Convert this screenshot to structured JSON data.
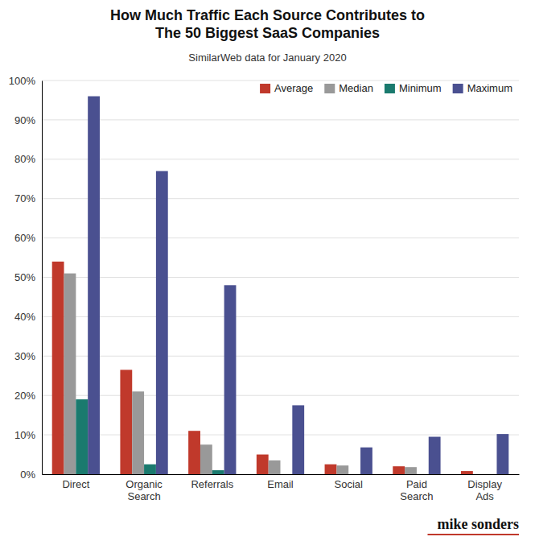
{
  "chart_data": {
    "type": "bar",
    "title": "How Much Traffic Each Source Contributes to\nThe 50 Biggest SaaS Companies",
    "subtitle": "SimilarWeb data for January 2020",
    "categories": [
      "Direct",
      "Organic\nSearch",
      "Referrals",
      "Email",
      "Social",
      "Paid\nSearch",
      "Display\nAds"
    ],
    "series": [
      {
        "name": "Average",
        "color": "#c0392b",
        "values": [
          0.54,
          0.265,
          0.11,
          0.05,
          0.025,
          0.02,
          0.008
        ]
      },
      {
        "name": "Median",
        "color": "#999999",
        "values": [
          0.51,
          0.21,
          0.075,
          0.035,
          0.022,
          0.018,
          0.0
        ]
      },
      {
        "name": "Minimum",
        "color": "#1a7a6e",
        "values": [
          0.19,
          0.025,
          0.01,
          0.0,
          0.0,
          0.0,
          0.0
        ]
      },
      {
        "name": "Maximum",
        "color": "#4a5090",
        "values": [
          0.96,
          0.77,
          0.48,
          0.175,
          0.068,
          0.095,
          0.102
        ]
      }
    ],
    "ylim": [
      0,
      1.0
    ],
    "yticks": [
      {
        "value": 0,
        "label": "0%"
      },
      {
        "value": 0.1,
        "label": "10%"
      },
      {
        "value": 0.2,
        "label": "20%"
      },
      {
        "value": 0.3,
        "label": "30%"
      },
      {
        "value": 0.4,
        "label": "40%"
      },
      {
        "value": 0.5,
        "label": "50%"
      },
      {
        "value": 0.6,
        "label": "60%"
      },
      {
        "value": 0.7,
        "label": "70%"
      },
      {
        "value": 0.8,
        "label": "80%"
      },
      {
        "value": 0.9,
        "label": "90%"
      },
      {
        "value": 1.0,
        "label": "100%"
      }
    ],
    "grid": true,
    "legend": "upper right",
    "annotations": [
      {
        "text": "mike sonders",
        "color": "#c0392b"
      }
    ]
  }
}
